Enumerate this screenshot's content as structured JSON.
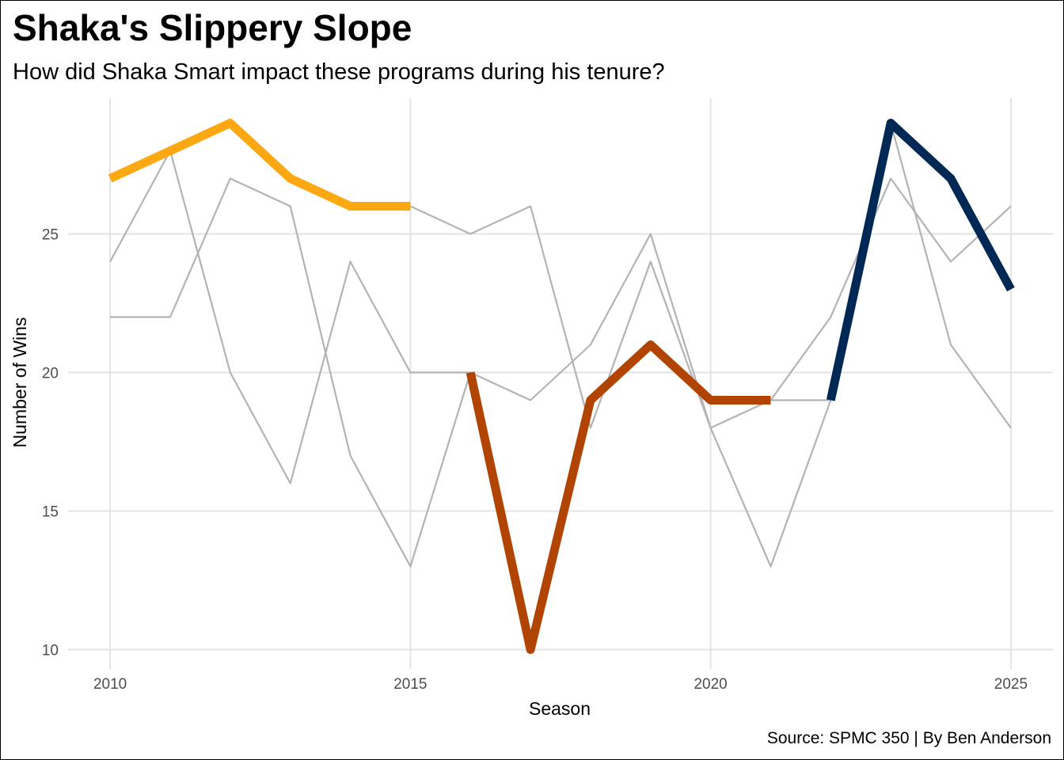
{
  "chart_data": {
    "type": "line",
    "title": "Shaka's Slippery Slope",
    "subtitle": "How did Shaka Smart impact these programs during his tenure?",
    "caption": "Source: SPMC 350 | By Ben Anderson",
    "xlabel": "Season",
    "ylabel": "Number of Wins",
    "xlim": [
      2009.3,
      2025.7
    ],
    "ylim": [
      9.3,
      29.9
    ],
    "x_ticks": [
      2010,
      2015,
      2020,
      2025
    ],
    "y_ticks": [
      10,
      15,
      20,
      25
    ],
    "x_tick_labels": [
      "2010",
      "2015",
      "2020",
      "2025"
    ],
    "y_tick_labels": [
      "10",
      "15",
      "20",
      "25"
    ],
    "grid": true,
    "background_series_color": "#b3b3b3",
    "background_series": [
      {
        "x": [
          2010,
          2011,
          2012,
          2013,
          2014,
          2015,
          2016,
          2017,
          2018,
          2019,
          2020,
          2021,
          2022,
          2023,
          2024,
          2025
        ],
        "y": [
          24,
          28,
          20,
          16,
          24,
          20,
          20,
          19,
          21,
          25,
          18,
          19,
          22,
          27,
          24,
          26
        ]
      },
      {
        "x": [
          2010,
          2011,
          2012,
          2013,
          2014,
          2015,
          2016,
          2017,
          2018,
          2019,
          2020,
          2021,
          2022,
          2023,
          2024,
          2025
        ],
        "y": [
          22,
          22,
          27,
          26,
          17,
          13,
          20,
          10,
          19,
          21,
          19,
          19,
          19,
          29,
          21,
          18
        ]
      },
      {
        "x": [
          2010,
          2011,
          2012,
          2013,
          2014,
          2015,
          2016,
          2017,
          2018,
          2019,
          2020,
          2021,
          2022,
          2023,
          2024,
          2025
        ],
        "y": [
          27,
          28,
          29,
          27,
          26,
          26,
          25,
          26,
          18,
          24,
          18,
          13,
          19,
          29,
          27,
          23
        ]
      }
    ],
    "highlight_series": [
      {
        "x": [
          2010,
          2011,
          2012,
          2013,
          2014,
          2015
        ],
        "y": [
          27,
          28,
          29,
          27,
          26,
          26
        ],
        "color": "#fca813"
      },
      {
        "x": [
          2016,
          2017,
          2018,
          2019,
          2020,
          2021
        ],
        "y": [
          20,
          10,
          19,
          21,
          19,
          19
        ],
        "color": "#b04400"
      },
      {
        "x": [
          2022,
          2023,
          2024,
          2025
        ],
        "y": [
          19,
          29,
          27,
          23
        ],
        "color": "#002855"
      }
    ]
  }
}
